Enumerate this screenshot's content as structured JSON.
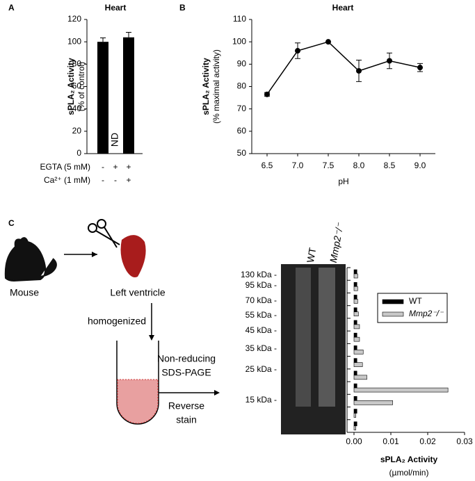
{
  "chart_data": [
    {
      "type": "bar",
      "panel_label": "A",
      "title": "Heart",
      "ylabel": [
        "sPLA₂ Activity",
        "(% of control)"
      ],
      "categories": [
        null,
        null,
        null
      ],
      "condition_rows": [
        {
          "label": "EGTA (5 mM)",
          "values": [
            "-",
            "+",
            "+"
          ]
        },
        {
          "label": "Ca²⁺ (1 mM)",
          "values": [
            "-",
            "-",
            "+"
          ]
        }
      ],
      "values": [
        100,
        null,
        104
      ],
      "value_labels": [
        null,
        "ND",
        null
      ],
      "errors": [
        3.5,
        null,
        4.5
      ],
      "color": "#000000",
      "ylim": [
        0,
        120
      ],
      "yticks": [
        0,
        20,
        40,
        60,
        80,
        100,
        120
      ]
    },
    {
      "type": "line",
      "panel_label": "B",
      "title": "Heart",
      "ylabel": [
        "sPLA₂ Activity",
        "(% maximal activity)"
      ],
      "xlabel": "pH",
      "x": [
        6.5,
        7.0,
        7.5,
        8.0,
        8.5,
        9.0
      ],
      "values": [
        76.5,
        96,
        100,
        87,
        91.5,
        88.5
      ],
      "errors": [
        0.8,
        3.5,
        0,
        4.8,
        3.5,
        1.8
      ],
      "color": "#000000",
      "xlim": [
        6.25,
        9.25
      ],
      "ylim": [
        50,
        110
      ],
      "xticks": [
        6.5,
        {
          "value": 7,
          "label": "7.0"
        },
        7.5,
        {
          "value": 8,
          "label": "8.0"
        },
        8.5,
        {
          "value": 9,
          "label": "9.0"
        }
      ],
      "yticks": [
        50,
        60,
        70,
        80,
        90,
        100,
        110
      ]
    },
    {
      "type": "hbar",
      "xlabel": [
        "sPLA₂ Activity",
        "(µmol/min)"
      ],
      "categories": [
        null,
        null,
        null,
        null,
        null,
        null,
        null,
        null,
        null,
        null,
        null,
        null,
        null
      ],
      "series": [
        {
          "name": "WT",
          "color": "#000000",
          "values": [
            0.0008,
            0.0008,
            0.0008,
            0.0008,
            0.0008,
            0.0008,
            0.0008,
            0.0008,
            0.0008,
            0.0008,
            0.0008,
            0.0008,
            0.0008
          ]
        },
        {
          "name": "Mmp2⁻/⁻",
          "color": "#c8c8c8",
          "values": [
            0.001,
            0.001,
            0.001,
            0.0012,
            0.0015,
            0.0015,
            0.0025,
            0.0023,
            0.0035,
            0.0255,
            0.0105,
            0.0005,
            0.0005
          ]
        }
      ],
      "xlim": [
        0,
        0.03
      ],
      "xticks": [
        {
          "value": 0,
          "label": "0.00"
        },
        {
          "value": 0.01,
          "label": "0.01"
        },
        {
          "value": 0.02,
          "label": "0.02"
        },
        {
          "value": 0.03,
          "label": "0.03"
        }
      ],
      "legend": "upper right"
    }
  ],
  "diagram": {
    "panel_label": "C",
    "source": "Mouse",
    "tissue": "Left ventricle",
    "step1": "homogenized",
    "step2": [
      "Non-reducing",
      "SDS-PAGE"
    ],
    "step3": [
      "Reverse",
      "stain"
    ],
    "lanes": [
      "WT",
      "Mmp2⁻/⁻"
    ],
    "markers": [
      "130 kDa -",
      "95 kDa -",
      "70 kDa -",
      "55 kDa -",
      "45 kDa -",
      "35 kDa -",
      "25 kDa -",
      "15 kDa -"
    ]
  }
}
